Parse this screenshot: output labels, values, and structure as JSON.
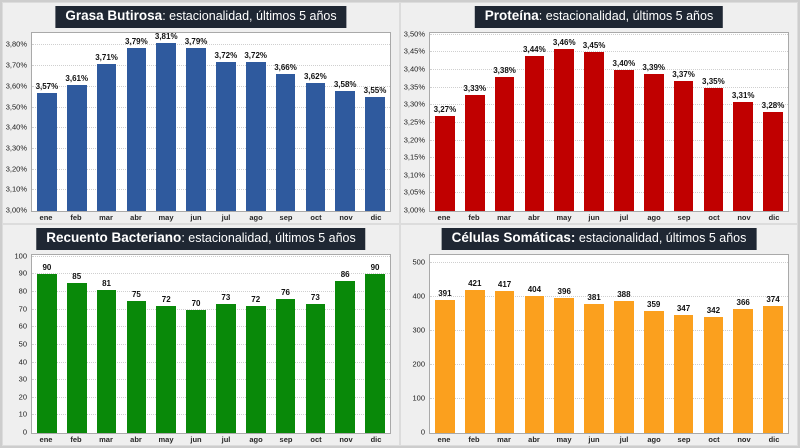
{
  "page": {
    "background": "#EFEFEF",
    "panel_border": "#DCDCDC",
    "plot_background": "#FFFFFF",
    "plot_border": "#A9A9A9",
    "gridline_color": "#CFCFCF",
    "title_bar_background": "#1F2733",
    "title_text_color": "#FFFFFF"
  },
  "chart_data": [
    {
      "id": "grasa-butirosa",
      "type": "bar",
      "title_bold": "Grasa Butirosa",
      "title_rest": ": estacionalidad, últimos 5 años",
      "bar_color": "#2F5A9E",
      "legend": "none",
      "grid": true,
      "categories": [
        "ene",
        "feb",
        "mar",
        "abr",
        "may",
        "jun",
        "jul",
        "ago",
        "sep",
        "oct",
        "nov",
        "dic"
      ],
      "values": [
        3.57,
        3.61,
        3.71,
        3.79,
        3.81,
        3.79,
        3.72,
        3.72,
        3.66,
        3.62,
        3.58,
        3.55
      ],
      "value_labels": [
        "3,57%",
        "3,61%",
        "3,71%",
        "3,79%",
        "3,81%",
        "3,79%",
        "3,72%",
        "3,72%",
        "3,66%",
        "3,62%",
        "3,58%",
        "3,55%"
      ],
      "ylim": [
        3.0,
        3.86
      ],
      "y_ticks": [
        {
          "value": 3.0,
          "label": "3,00%"
        },
        {
          "value": 3.1,
          "label": "3,10%"
        },
        {
          "value": 3.2,
          "label": "3,20%"
        },
        {
          "value": 3.3,
          "label": "3,30%"
        },
        {
          "value": 3.4,
          "label": "3,40%"
        },
        {
          "value": 3.5,
          "label": "3,50%"
        },
        {
          "value": 3.6,
          "label": "3,60%"
        },
        {
          "value": 3.7,
          "label": "3,70%"
        },
        {
          "value": 3.8,
          "label": "3,80%"
        }
      ]
    },
    {
      "id": "proteina",
      "type": "bar",
      "title_bold": "Proteína",
      "title_rest": ": estacionalidad, últimos 5 años",
      "bar_color": "#C00000",
      "legend": "none",
      "grid": true,
      "categories": [
        "ene",
        "feb",
        "mar",
        "abr",
        "may",
        "jun",
        "jul",
        "ago",
        "sep",
        "oct",
        "nov",
        "dic"
      ],
      "values": [
        3.27,
        3.33,
        3.38,
        3.44,
        3.46,
        3.45,
        3.4,
        3.39,
        3.37,
        3.35,
        3.31,
        3.28
      ],
      "value_labels": [
        "3,27%",
        "3,33%",
        "3,38%",
        "3,44%",
        "3,46%",
        "3,45%",
        "3,40%",
        "3,39%",
        "3,37%",
        "3,35%",
        "3,31%",
        "3,28%"
      ],
      "ylim": [
        3.0,
        3.505
      ],
      "y_ticks": [
        {
          "value": 3.0,
          "label": "3,00%"
        },
        {
          "value": 3.05,
          "label": "3,05%"
        },
        {
          "value": 3.1,
          "label": "3,10%"
        },
        {
          "value": 3.15,
          "label": "3,15%"
        },
        {
          "value": 3.2,
          "label": "3,20%"
        },
        {
          "value": 3.25,
          "label": "3,25%"
        },
        {
          "value": 3.3,
          "label": "3,30%"
        },
        {
          "value": 3.35,
          "label": "3,35%"
        },
        {
          "value": 3.4,
          "label": "3,40%"
        },
        {
          "value": 3.45,
          "label": "3,45%"
        },
        {
          "value": 3.5,
          "label": "3,50%"
        }
      ]
    },
    {
      "id": "recuento-bacteriano",
      "type": "bar",
      "title_bold": "Recuento Bacteriano",
      "title_rest": ": estacionalidad, últimos 5 años",
      "bar_color": "#098909",
      "legend": "none",
      "grid": true,
      "categories": [
        "ene",
        "feb",
        "mar",
        "abr",
        "may",
        "jun",
        "jul",
        "ago",
        "sep",
        "oct",
        "nov",
        "dic"
      ],
      "values": [
        90,
        85,
        81,
        75,
        72,
        70,
        73,
        72,
        76,
        73,
        86,
        90
      ],
      "value_labels": [
        "90",
        "85",
        "81",
        "75",
        "72",
        "70",
        "73",
        "72",
        "76",
        "73",
        "86",
        "90"
      ],
      "ylim": [
        0,
        101
      ],
      "y_ticks": [
        {
          "value": 0,
          "label": "0"
        },
        {
          "value": 10,
          "label": "10"
        },
        {
          "value": 20,
          "label": "20"
        },
        {
          "value": 30,
          "label": "30"
        },
        {
          "value": 40,
          "label": "40"
        },
        {
          "value": 50,
          "label": "50"
        },
        {
          "value": 60,
          "label": "60"
        },
        {
          "value": 70,
          "label": "70"
        },
        {
          "value": 80,
          "label": "80"
        },
        {
          "value": 90,
          "label": "90"
        },
        {
          "value": 100,
          "label": "100"
        }
      ]
    },
    {
      "id": "celulas-somaticas",
      "type": "bar",
      "title_bold": "Células Somáticas:",
      "title_rest": " estacionalidad, últimos 5 años",
      "bar_color": "#FBA01E",
      "legend": "none",
      "grid": true,
      "categories": [
        "ene",
        "feb",
        "mar",
        "abr",
        "may",
        "jun",
        "jul",
        "ago",
        "sep",
        "oct",
        "nov",
        "dic"
      ],
      "values": [
        391,
        421,
        417,
        404,
        396,
        381,
        388,
        359,
        347,
        342,
        366,
        374
      ],
      "value_labels": [
        "391",
        "421",
        "417",
        "404",
        "396",
        "381",
        "388",
        "359",
        "347",
        "342",
        "366",
        "374"
      ],
      "ylim": [
        0,
        524
      ],
      "y_ticks": [
        {
          "value": 0,
          "label": "0"
        },
        {
          "value": 100,
          "label": "100"
        },
        {
          "value": 200,
          "label": "200"
        },
        {
          "value": 300,
          "label": "300"
        },
        {
          "value": 400,
          "label": "400"
        },
        {
          "value": 500,
          "label": "500"
        }
      ]
    }
  ]
}
